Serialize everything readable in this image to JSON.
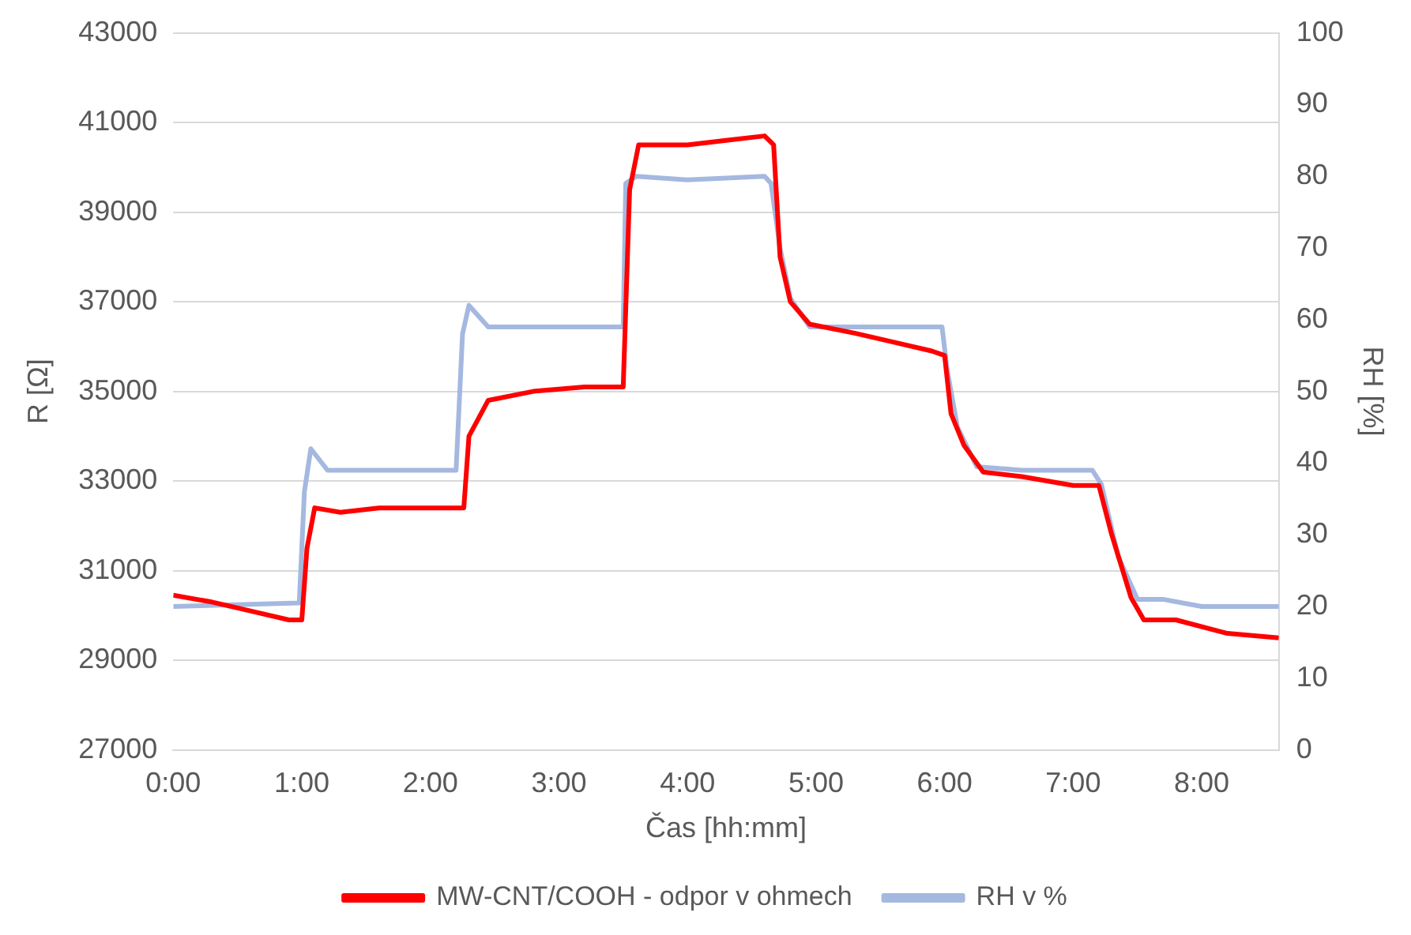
{
  "chart_data": {
    "type": "line",
    "xlabel": "Čas [hh:mm]",
    "ylabel": "R [Ω]",
    "y2label": "RH [%]",
    "xlim": [
      0,
      8.6
    ],
    "xticks": [
      {
        "value": 0,
        "label": "0:00"
      },
      {
        "value": 1,
        "label": "1:00"
      },
      {
        "value": 2,
        "label": "2:00"
      },
      {
        "value": 3,
        "label": "3:00"
      },
      {
        "value": 4,
        "label": "4:00"
      },
      {
        "value": 5,
        "label": "5:00"
      },
      {
        "value": 6,
        "label": "6:00"
      },
      {
        "value": 7,
        "label": "7:00"
      },
      {
        "value": 8,
        "label": "8:00"
      }
    ],
    "ylim": [
      27000,
      43000
    ],
    "yticks": [
      27000,
      29000,
      31000,
      33000,
      35000,
      37000,
      39000,
      41000,
      43000
    ],
    "y2lim": [
      0,
      100
    ],
    "y2ticks": [
      0,
      10,
      20,
      30,
      40,
      50,
      60,
      70,
      80,
      90,
      100
    ],
    "grid": "y",
    "legend": "bottom",
    "marker": "none",
    "line_style": "solid",
    "series": [
      {
        "name": "MW-CNT/COOH - odpor v ohmech",
        "color": "#ff0000",
        "x": [
          0,
          0.3,
          0.6,
          0.9,
          1.0,
          1.04,
          1.1,
          1.3,
          1.6,
          2.0,
          2.26,
          2.3,
          2.45,
          2.8,
          3.2,
          3.5,
          3.55,
          3.62,
          4.0,
          4.3,
          4.6,
          4.67,
          4.72,
          4.8,
          4.95,
          5.3,
          5.6,
          5.9,
          6.0,
          6.05,
          6.15,
          6.3,
          6.6,
          7.0,
          7.2,
          7.3,
          7.45,
          7.55,
          7.8,
          8.2,
          8.6
        ],
        "values": [
          30450,
          30300,
          30100,
          29900,
          29900,
          31500,
          32400,
          32300,
          32400,
          32400,
          32400,
          34000,
          34800,
          35000,
          35100,
          35100,
          39500,
          40500,
          40500,
          40600,
          40700,
          40500,
          38000,
          37000,
          36500,
          36300,
          36100,
          35900,
          35800,
          34500,
          33800,
          33200,
          33100,
          32900,
          32900,
          31800,
          30400,
          29900,
          29900,
          29600,
          29500
        ]
      },
      {
        "name": "RH v %",
        "color": "#a4b8e0",
        "axis": "y2",
        "x": [
          0,
          0.98,
          1.02,
          1.07,
          1.2,
          1.5,
          2.0,
          2.2,
          2.25,
          2.3,
          2.45,
          3.0,
          3.5,
          3.52,
          3.6,
          4.0,
          4.6,
          4.65,
          4.72,
          4.8,
          4.95,
          5.3,
          5.98,
          6.02,
          6.1,
          6.25,
          6.6,
          7.15,
          7.22,
          7.35,
          7.5,
          7.7,
          8.0,
          8.6
        ],
        "values": [
          20,
          20.5,
          36,
          42,
          39,
          39,
          39,
          39,
          58,
          62,
          59,
          59,
          59,
          79,
          80,
          79.5,
          80,
          79,
          70,
          63,
          59,
          59,
          59,
          53,
          45,
          39.5,
          39,
          39,
          37,
          27,
          21,
          21,
          20,
          20
        ]
      }
    ]
  }
}
